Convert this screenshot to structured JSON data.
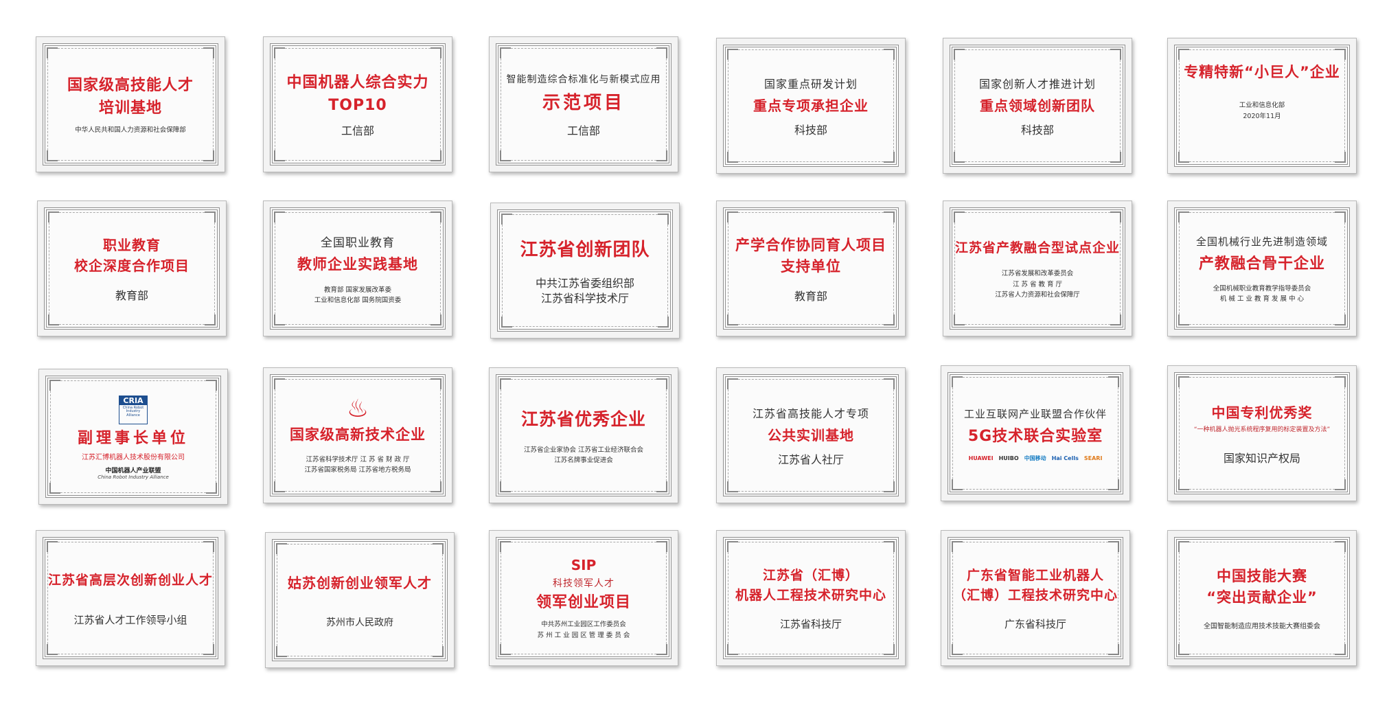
{
  "colors": {
    "accent": "#d6222b",
    "frame": "#8f8f8f",
    "text": "#333333"
  },
  "plaques": {
    "p1": {
      "t1": "国家级高技能人才",
      "t2": "培训基地",
      "issuer": "中华人民共和国人力资源和社会保障部"
    },
    "p2": {
      "t1": "中国机器人综合实力",
      "t2": "TOP10",
      "issuer": "工信部"
    },
    "p3": {
      "arc": "智能制造综合标准化与新模式应用",
      "t1": "示范项目",
      "issuer": "工信部"
    },
    "p4": {
      "arc": "国家重点研发计划",
      "t1": "重点专项承担企业",
      "issuer": "科技部"
    },
    "p5": {
      "arc": "国家创新人才推进计划",
      "t1": "重点领域创新团队",
      "issuer": "科技部"
    },
    "p6": {
      "t1": "专精特新“小巨人”企业",
      "issuer": "工业和信息化部",
      "date": "2020年11月"
    },
    "p7": {
      "t1": "职业教育",
      "t2": "校企深度合作项目",
      "issuer": "教育部"
    },
    "p8": {
      "arc": "全国职业教育",
      "t1": "教师企业实践基地",
      "issuer1": "教育部  国家发展改革委",
      "issuer2": "工业和信息化部  国务院国资委"
    },
    "p9": {
      "t1": "江苏省创新团队",
      "issuer1": "中共江苏省委组织部",
      "issuer2": "江苏省科学技术厅"
    },
    "p10": {
      "t1": "产学合作协同育人项目",
      "t2": "支持单位",
      "issuer": "教育部"
    },
    "p11": {
      "t1": "江苏省产教融合型试点企业",
      "issuer1": "江苏省发展和改革委员会",
      "issuer2": "江  苏  省  教  育  厅",
      "issuer3": "江苏省人力资源和社会保障厅"
    },
    "p12": {
      "arc": "全国机械行业先进制造领域",
      "t1": "产教融合骨干企业",
      "issuer1": "全国机械职业教育教学指导委员会",
      "issuer2": "机 械 工 业 教 育 发 展 中 心"
    },
    "p13": {
      "logo": "CRIA",
      "logo_lines": "China Robot Industry Alliance",
      "t1": "副理事长单位",
      "sub": "江苏汇博机器人技术股份有限公司",
      "alliance_cn": "中国机器人产业联盟",
      "alliance_en": "China Robot Industry Alliance"
    },
    "p14": {
      "t1": "国家级高新技术企业",
      "issuer1": "江苏省科学技术厅    江 苏 省 财 政 厅",
      "issuer2": "江苏省国家税务局    江苏省地方税务局"
    },
    "p15": {
      "t1": "江苏省优秀企业",
      "issuer1": "江苏省企业家协会      江苏省工业经济联合会",
      "issuer2": "江苏名牌事业促进会"
    },
    "p16": {
      "arc": "江苏省高技能人才专项",
      "t1": "公共实训基地",
      "issuer": "江苏省人社厅"
    },
    "p17": {
      "arc": "工业互联网产业联盟合作伙伴",
      "t1": "5G技术联合实验室",
      "logos": [
        "HUAWEI",
        "HUIBO",
        "中国移动",
        "Hai Cells",
        "SEARI"
      ]
    },
    "p18": {
      "t1": "中国专利优秀奖",
      "sub": "“一种机器人抛光系统程序复用的标定装置及方法”",
      "issuer": "国家知识产权局"
    },
    "p19": {
      "t1": "江苏省高层次创新创业人才",
      "issuer": "江苏省人才工作领导小组"
    },
    "p20": {
      "t1": "姑苏创新创业领军人才",
      "issuer": "苏州市人民政府"
    },
    "p21": {
      "logo": "SIP",
      "arc": "科技领军人才",
      "t1": "领军创业项目",
      "issuer1": "中共苏州工业园区工作委员会",
      "issuer2": "苏 州 工 业 园 区 管 理 委 员 会"
    },
    "p22": {
      "t1": "江苏省（汇博）",
      "t2": "机器人工程技术研究中心",
      "issuer": "江苏省科技厅"
    },
    "p23": {
      "t1": "广东省智能工业机器人",
      "t2": "（汇博）工程技术研究中心",
      "issuer": "广东省科技厅"
    },
    "p24": {
      "t1": "中国技能大赛",
      "t2": "“突出贡献企业”",
      "issuer": "全国智能制造应用技术技能大赛组委会"
    }
  }
}
